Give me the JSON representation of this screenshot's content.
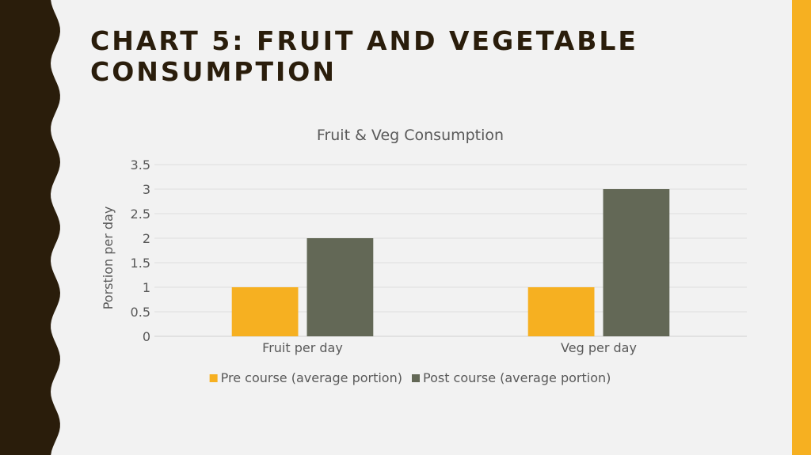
{
  "slide": {
    "title": "CHART 5: FRUIT AND VEGETABLE CONSUMPTION",
    "colors": {
      "background": "#f2f2f2",
      "border": "#2a1d0b",
      "accent": "#f6b021",
      "title": "#2a1d0b"
    }
  },
  "chart_data": {
    "type": "bar",
    "title": "Fruit & Veg Consumption",
    "xlabel": "",
    "ylabel": "Porstion per day",
    "categories": [
      "Fruit per day",
      "Veg per day"
    ],
    "series": [
      {
        "name": "Pre course (average portion)",
        "values": [
          1,
          1
        ],
        "color": "#f6b021"
      },
      {
        "name": "Post course (average portion)",
        "values": [
          2,
          3
        ],
        "color": "#636856"
      }
    ],
    "ylim": [
      0,
      3.5
    ],
    "yticks": [
      "0",
      "0.5",
      "1",
      "1.5",
      "2",
      "2.5",
      "3",
      "3.5"
    ],
    "grid": true,
    "legend": "bottom"
  }
}
